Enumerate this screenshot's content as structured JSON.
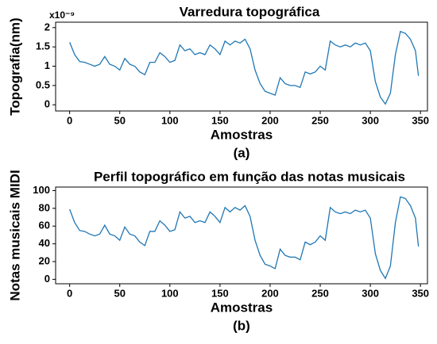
{
  "chart_data": [
    {
      "type": "line",
      "title": "Varredura topográfica",
      "xlabel": "Amostras",
      "ylabel": "Topografia(nm)",
      "caption": "(a)",
      "offset_label": "x10⁻⁹",
      "x": [
        0,
        5,
        10,
        15,
        20,
        25,
        30,
        35,
        40,
        45,
        50,
        55,
        60,
        65,
        70,
        75,
        80,
        85,
        90,
        95,
        100,
        105,
        110,
        115,
        120,
        125,
        130,
        135,
        140,
        145,
        150,
        155,
        160,
        165,
        170,
        175,
        180,
        185,
        190,
        195,
        200,
        205,
        210,
        215,
        220,
        225,
        230,
        235,
        240,
        245,
        250,
        255,
        260,
        265,
        270,
        275,
        280,
        285,
        290,
        295,
        300,
        305,
        310,
        315,
        320,
        325,
        330,
        335,
        340,
        345,
        348
      ],
      "series": [
        {
          "name": "Topografia",
          "color": "#1f77b4",
          "values": [
            1.62,
            1.3,
            1.12,
            1.1,
            1.05,
            1.0,
            1.05,
            1.25,
            1.05,
            1.0,
            0.9,
            1.2,
            1.05,
            1.0,
            0.85,
            0.78,
            1.1,
            1.1,
            1.35,
            1.25,
            1.1,
            1.15,
            1.55,
            1.4,
            1.45,
            1.3,
            1.35,
            1.3,
            1.55,
            1.45,
            1.3,
            1.65,
            1.55,
            1.65,
            1.6,
            1.7,
            1.45,
            0.9,
            0.55,
            0.35,
            0.3,
            0.25,
            0.7,
            0.55,
            0.5,
            0.5,
            0.45,
            0.85,
            0.8,
            0.85,
            1.0,
            0.9,
            1.65,
            1.55,
            1.5,
            1.55,
            1.5,
            1.6,
            1.55,
            1.6,
            1.4,
            0.6,
            0.2,
            0.02,
            0.3,
            1.3,
            1.9,
            1.85,
            1.7,
            1.4,
            0.75
          ]
        }
      ],
      "xlim": [
        -14,
        357
      ],
      "xticks": [
        0,
        50,
        100,
        150,
        200,
        250,
        300,
        350
      ],
      "ylim": [
        -0.16,
        2.14
      ],
      "yticks": [
        0,
        0.5,
        1,
        1.5,
        2
      ]
    },
    {
      "type": "line",
      "title": "Perfil topográfico em função das notas musicais",
      "xlabel": "Amostras",
      "ylabel": "Notas musicais MIDI",
      "caption": "(b)",
      "x": [
        0,
        5,
        10,
        15,
        20,
        25,
        30,
        35,
        40,
        45,
        50,
        55,
        60,
        65,
        70,
        75,
        80,
        85,
        90,
        95,
        100,
        105,
        110,
        115,
        120,
        125,
        130,
        135,
        140,
        145,
        150,
        155,
        160,
        165,
        170,
        175,
        180,
        185,
        190,
        195,
        200,
        205,
        210,
        215,
        220,
        225,
        230,
        235,
        240,
        245,
        250,
        255,
        260,
        265,
        270,
        275,
        280,
        285,
        290,
        295,
        300,
        305,
        310,
        315,
        320,
        325,
        330,
        335,
        340,
        345,
        348
      ],
      "series": [
        {
          "name": "MIDI",
          "color": "#1f77b4",
          "values": [
            79,
            64,
            55,
            54,
            51,
            49,
            51,
            61,
            51,
            49,
            44,
            59,
            51,
            49,
            42,
            38,
            54,
            54,
            66,
            61,
            54,
            56,
            76,
            69,
            71,
            64,
            66,
            64,
            76,
            71,
            64,
            81,
            76,
            81,
            78,
            83,
            71,
            44,
            27,
            17,
            15,
            12,
            34,
            27,
            25,
            25,
            22,
            42,
            39,
            42,
            49,
            44,
            81,
            76,
            74,
            76,
            74,
            78,
            76,
            78,
            69,
            29,
            10,
            1,
            15,
            64,
            93,
            91,
            83,
            69,
            37
          ]
        }
      ],
      "xlim": [
        -14,
        357
      ],
      "xticks": [
        0,
        50,
        100,
        150,
        200,
        250,
        300,
        350
      ],
      "ylim": [
        -5,
        104
      ],
      "yticks": [
        0,
        20,
        40,
        60,
        80,
        100
      ]
    }
  ]
}
